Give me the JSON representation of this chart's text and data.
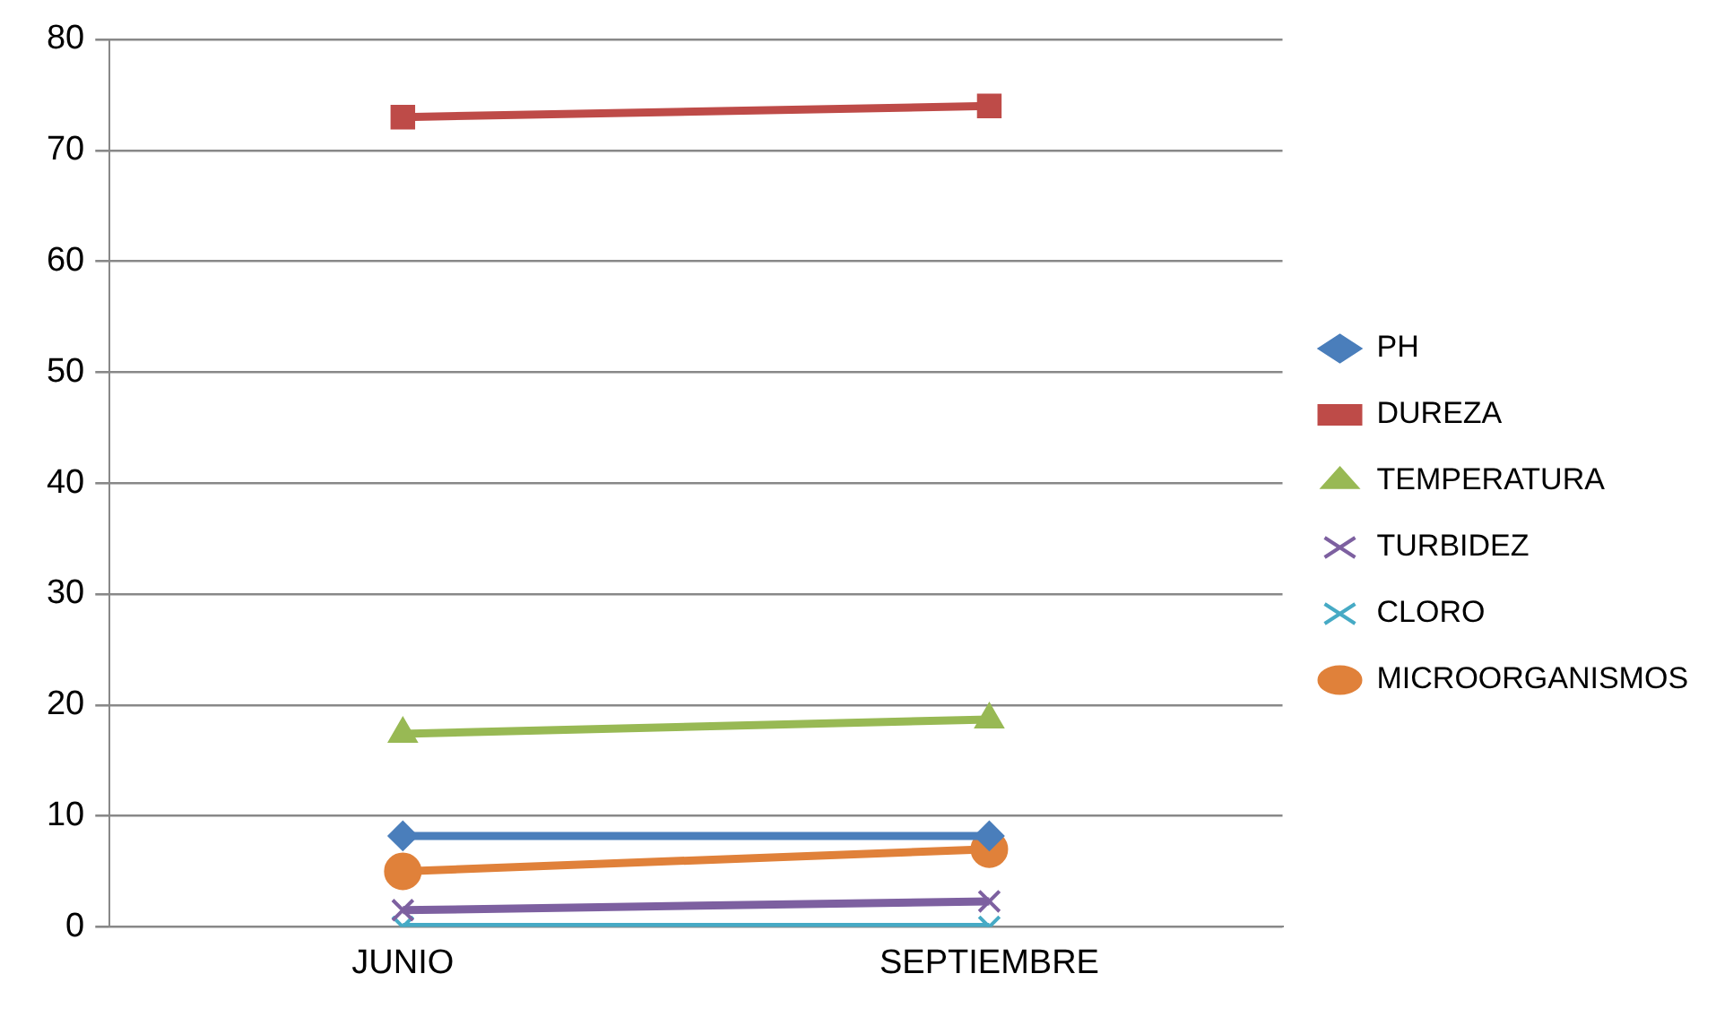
{
  "chart_data": {
    "type": "line",
    "categories": [
      "JUNIO",
      "SEPTIEMBRE"
    ],
    "series": [
      {
        "name": "PH",
        "color": "#4a7ebb",
        "marker": "diamond",
        "values": [
          8.2,
          8.2
        ]
      },
      {
        "name": "DUREZA",
        "color": "#be4b48",
        "marker": "square",
        "values": [
          73,
          74
        ]
      },
      {
        "name": "TEMPERATURA",
        "color": "#98b954",
        "marker": "triangle",
        "values": [
          17.4,
          18.7
        ]
      },
      {
        "name": "TURBIDEZ",
        "color": "#7d60a0",
        "marker": "cross",
        "values": [
          1.5,
          2.3
        ]
      },
      {
        "name": "CLORO",
        "color": "#46aac5",
        "marker": "cross",
        "values": [
          0,
          0
        ]
      },
      {
        "name": "MICROORGANISMOS",
        "color": "#e0813a",
        "marker": "circle",
        "values": [
          5,
          7
        ]
      }
    ],
    "ylim": [
      0,
      80
    ],
    "yticks": [
      0,
      10,
      20,
      30,
      40,
      50,
      60,
      70,
      80
    ],
    "grid": "y",
    "legend": "right"
  }
}
